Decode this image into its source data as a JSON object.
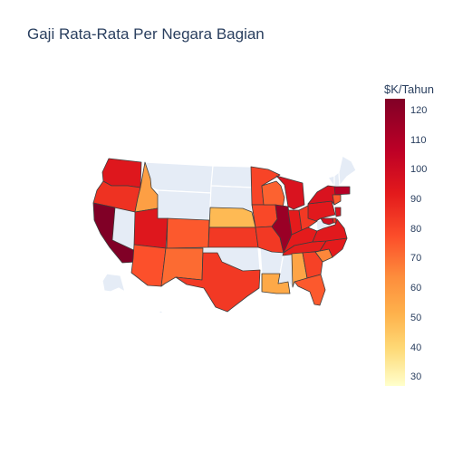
{
  "title": "Gaji Rata-Rata Per Negara Bagian",
  "colorbar": {
    "title": "$K/Tahun",
    "min": 27,
    "max": 124,
    "ticks": [
      "120",
      "110",
      "100",
      "90",
      "80",
      "70",
      "60",
      "50",
      "40",
      "30"
    ],
    "tick_values": [
      120,
      110,
      100,
      90,
      80,
      70,
      60,
      50,
      40,
      30
    ],
    "colorscale": [
      "#ffffcc",
      "#fed976",
      "#feb24c",
      "#fd8d3c",
      "#fc4e2a",
      "#e31a1c",
      "#bd0026",
      "#800026"
    ]
  },
  "nodata_color": "#e5ecf6",
  "states": [
    {
      "code": "WA",
      "value": 98
    },
    {
      "code": "OR",
      "value": 90
    },
    {
      "code": "CA",
      "value": 124
    },
    {
      "code": "NV",
      "value": null
    },
    {
      "code": "ID",
      "value": 62
    },
    {
      "code": "MT",
      "value": null
    },
    {
      "code": "WY",
      "value": null
    },
    {
      "code": "UT",
      "value": 98
    },
    {
      "code": "AZ",
      "value": 82
    },
    {
      "code": "CO",
      "value": 80
    },
    {
      "code": "NM",
      "value": 76
    },
    {
      "code": "ND",
      "value": null
    },
    {
      "code": "SD",
      "value": null
    },
    {
      "code": "NE",
      "value": 52
    },
    {
      "code": "KS",
      "value": 88
    },
    {
      "code": "OK",
      "value": null
    },
    {
      "code": "TX",
      "value": 88
    },
    {
      "code": "MN",
      "value": 85
    },
    {
      "code": "IA",
      "value": 84
    },
    {
      "code": "MO",
      "value": 88
    },
    {
      "code": "AR",
      "value": null
    },
    {
      "code": "LA",
      "value": 58
    },
    {
      "code": "WI",
      "value": 78
    },
    {
      "code": "IL",
      "value": 118
    },
    {
      "code": "MI",
      "value": 100
    },
    {
      "code": "IN",
      "value": 96
    },
    {
      "code": "OH",
      "value": 88
    },
    {
      "code": "KY",
      "value": 96
    },
    {
      "code": "TN",
      "value": 95
    },
    {
      "code": "MS",
      "value": null
    },
    {
      "code": "AL",
      "value": 60
    },
    {
      "code": "GA",
      "value": 86
    },
    {
      "code": "FL",
      "value": 80
    },
    {
      "code": "SC",
      "value": 70
    },
    {
      "code": "NC",
      "value": 96
    },
    {
      "code": "VA",
      "value": 97
    },
    {
      "code": "WV",
      "value": null
    },
    {
      "code": "PA",
      "value": 97
    },
    {
      "code": "NY",
      "value": 100
    },
    {
      "code": "VT",
      "value": null
    },
    {
      "code": "NH",
      "value": null
    },
    {
      "code": "ME",
      "value": null
    },
    {
      "code": "MA",
      "value": 112
    },
    {
      "code": "CT",
      "value": 80
    },
    {
      "code": "NJ",
      "value": 100
    },
    {
      "code": "DE",
      "value": 90
    },
    {
      "code": "MD",
      "value": 102
    },
    {
      "code": "AK",
      "value": null
    },
    {
      "code": "HI",
      "value": null
    }
  ]
}
